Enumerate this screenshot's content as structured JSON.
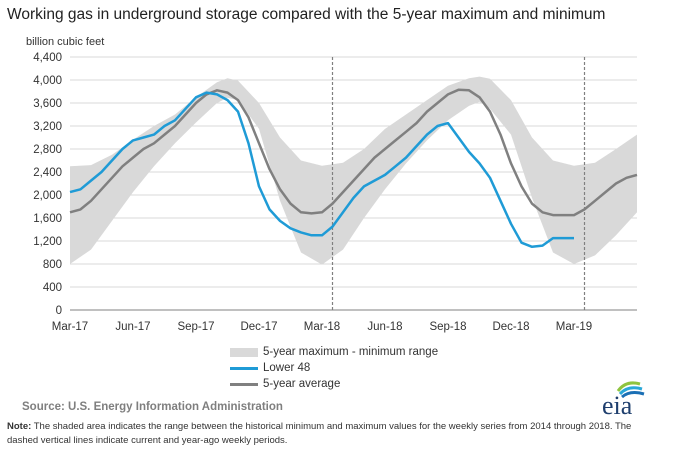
{
  "title": "Working gas in underground  storage compared with the 5-year maximum and minimum",
  "source": "Source:  U.S. Energy Information Administration",
  "note_label": "Note:",
  "note_text": " The shaded area indicates the range between the historical minimum and maximum values for the weekly series from 2014 through 2018. The dashed vertical lines indicate current and year-ago weekly periods.",
  "logo_text": "eia",
  "colors": {
    "band": "#d9d9d9",
    "lower48": "#1f9bd6",
    "average": "#808080",
    "marker": "#808080"
  },
  "chart_data": {
    "type": "area",
    "title": "Working gas in underground  storage compared with the 5-year maximum and minimum",
    "ylabel": "billion cubic feet",
    "xlabel": "",
    "ylim": [
      0,
      4400
    ],
    "ytick_labels": [
      "0",
      "400",
      "800",
      "1,200",
      "1,600",
      "2,000",
      "2,400",
      "2,800",
      "3,200",
      "3,600",
      "4,000",
      "4,400"
    ],
    "ytick_values": [
      0,
      400,
      800,
      1200,
      1600,
      2000,
      2400,
      2800,
      3200,
      3600,
      4000,
      4400
    ],
    "xtick_labels": [
      "Mar-17",
      "Jun-17",
      "Sep-17",
      "Dec-17",
      "Mar-18",
      "Jun-18",
      "Sep-18",
      "Dec-18",
      "Mar-19"
    ],
    "xtick_months": [
      0,
      3,
      6,
      9,
      12,
      15,
      18,
      21,
      24
    ],
    "x_unit": "months since Mar-17",
    "xlim": [
      0,
      27
    ],
    "grid": "horizontal",
    "legend_position": "bottom",
    "vertical_markers": [
      12.5,
      24.5
    ],
    "series": [
      {
        "name": "5-year maximum - minimum range",
        "kind": "band",
        "x": [
          0,
          1,
          2,
          3,
          4,
          5,
          6,
          7,
          7.5,
          8,
          9,
          10,
          11,
          12,
          13,
          14,
          15,
          16,
          17,
          18,
          19,
          19.5,
          20,
          21,
          22,
          23,
          24,
          25,
          26,
          27
        ],
        "upper": [
          2500,
          2520,
          2700,
          2960,
          3200,
          3400,
          3700,
          3960,
          4030,
          3990,
          3600,
          3000,
          2600,
          2510,
          2560,
          2800,
          3150,
          3400,
          3650,
          3900,
          4030,
          4060,
          4020,
          3650,
          3000,
          2600,
          2510,
          2560,
          2800,
          3050
        ],
        "lower": [
          800,
          1050,
          1550,
          2050,
          2500,
          2900,
          3260,
          3600,
          3690,
          3650,
          3150,
          1900,
          1000,
          790,
          1050,
          1600,
          2100,
          2550,
          2950,
          3300,
          3550,
          3620,
          3500,
          3050,
          1950,
          1000,
          800,
          950,
          1300,
          1700
        ]
      },
      {
        "name": "Lower 48",
        "kind": "line",
        "x": [
          0,
          0.5,
          1,
          1.5,
          2,
          2.5,
          3,
          3.5,
          4,
          4.5,
          5,
          5.5,
          6,
          6.5,
          7,
          7.5,
          8,
          8.5,
          9,
          9.5,
          10,
          10.5,
          11,
          11.5,
          12,
          12.5,
          13,
          13.5,
          14,
          14.5,
          15,
          15.5,
          16,
          16.5,
          17,
          17.5,
          18,
          18.5,
          19,
          19.5,
          20,
          20.5,
          21,
          21.5,
          22,
          22.5,
          23,
          23.5,
          24
        ],
        "values": [
          2050,
          2100,
          2250,
          2400,
          2600,
          2800,
          2950,
          3000,
          3050,
          3200,
          3300,
          3500,
          3700,
          3780,
          3750,
          3650,
          3450,
          2900,
          2150,
          1750,
          1550,
          1420,
          1350,
          1300,
          1300,
          1450,
          1700,
          1950,
          2150,
          2250,
          2350,
          2500,
          2650,
          2850,
          3050,
          3200,
          3250,
          3000,
          2750,
          2550,
          2300,
          1900,
          1500,
          1170,
          1100,
          1120,
          1250,
          1250,
          1250
        ]
      },
      {
        "name": "5-year average",
        "kind": "line",
        "x": [
          0,
          0.5,
          1,
          1.5,
          2,
          2.5,
          3,
          3.5,
          4,
          4.5,
          5,
          5.5,
          6,
          6.5,
          7,
          7.5,
          8,
          8.5,
          9,
          9.5,
          10,
          10.5,
          11,
          11.5,
          12,
          12.5,
          13,
          13.5,
          14,
          14.5,
          15,
          15.5,
          16,
          16.5,
          17,
          17.5,
          18,
          18.5,
          19,
          19.5,
          20,
          20.5,
          21,
          21.5,
          22,
          22.5,
          23,
          23.5,
          24,
          24.5,
          25,
          25.5,
          26,
          26.5,
          27
        ],
        "values": [
          1700,
          1750,
          1900,
          2100,
          2300,
          2500,
          2650,
          2800,
          2900,
          3050,
          3200,
          3400,
          3600,
          3750,
          3820,
          3780,
          3650,
          3350,
          2900,
          2450,
          2100,
          1850,
          1700,
          1680,
          1700,
          1850,
          2050,
          2250,
          2450,
          2650,
          2800,
          2950,
          3100,
          3250,
          3450,
          3600,
          3750,
          3830,
          3820,
          3700,
          3450,
          3050,
          2550,
          2150,
          1850,
          1700,
          1650,
          1650,
          1650,
          1750,
          1900,
          2050,
          2200,
          2300,
          2350
        ]
      }
    ]
  }
}
